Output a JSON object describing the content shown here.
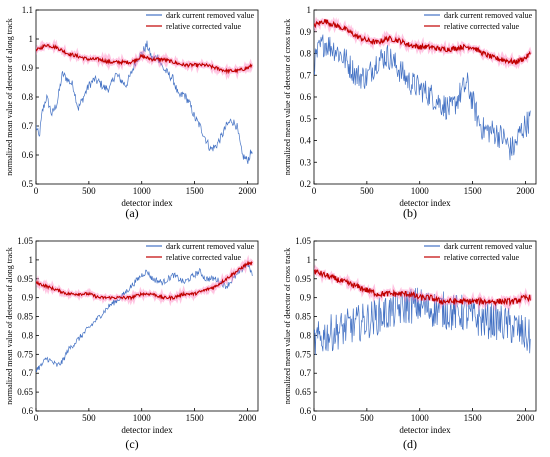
{
  "colors": {
    "dark": "#4472c4",
    "corrected": "#c00000",
    "corrected_band": "#ff7fbf",
    "axis": "#000000"
  },
  "panel_labels": [
    "(a)",
    "(b)",
    "(c)",
    "(d)"
  ],
  "chart_data": [
    {
      "type": "line",
      "panel": "(a)",
      "xlabel": "detector index",
      "ylabel": "normalized mean value of detector of along track",
      "xlim": [
        0,
        2100
      ],
      "ylim": [
        0.5,
        1.1
      ],
      "xticks": [
        "0",
        "500",
        "1000",
        "1500",
        "2000"
      ],
      "xtick_values": [
        0,
        500,
        1000,
        1500,
        2000
      ],
      "yticks": [
        "0.5",
        "0.6",
        "0.7",
        "0.8",
        "0.9",
        "1",
        "1.1"
      ],
      "ytick_values": [
        0.5,
        0.6,
        0.7,
        0.8,
        0.9,
        1.0,
        1.1
      ],
      "legend_position": "top-right",
      "noise": [
        0.015,
        0.006
      ],
      "series": [
        {
          "name": "dark current removed value",
          "color": "#4472c4",
          "x": [
            0,
            30,
            60,
            100,
            150,
            200,
            250,
            300,
            350,
            400,
            450,
            500,
            550,
            600,
            650,
            700,
            750,
            800,
            850,
            900,
            950,
            1000,
            1050,
            1100,
            1150,
            1200,
            1250,
            1300,
            1350,
            1400,
            1450,
            1500,
            1550,
            1600,
            1650,
            1700,
            1750,
            1800,
            1850,
            1900,
            1950,
            2000,
            2048
          ],
          "y": [
            0.7,
            0.66,
            0.75,
            0.8,
            0.74,
            0.78,
            0.88,
            0.86,
            0.84,
            0.76,
            0.8,
            0.84,
            0.86,
            0.85,
            0.83,
            0.83,
            0.88,
            0.86,
            0.84,
            0.88,
            0.93,
            0.95,
            0.98,
            0.93,
            0.94,
            0.9,
            0.88,
            0.86,
            0.8,
            0.81,
            0.78,
            0.73,
            0.7,
            0.66,
            0.62,
            0.63,
            0.66,
            0.7,
            0.72,
            0.7,
            0.6,
            0.58,
            0.62
          ]
        },
        {
          "name": "relative corrected value",
          "color": "#c00000",
          "x": [
            0,
            100,
            200,
            300,
            400,
            500,
            600,
            700,
            800,
            900,
            1000,
            1100,
            1200,
            1300,
            1400,
            1500,
            1600,
            1700,
            1800,
            1900,
            2000,
            2048
          ],
          "y": [
            0.96,
            0.98,
            0.97,
            0.95,
            0.94,
            0.93,
            0.93,
            0.92,
            0.92,
            0.92,
            0.94,
            0.93,
            0.93,
            0.92,
            0.91,
            0.91,
            0.91,
            0.9,
            0.89,
            0.89,
            0.9,
            0.91
          ]
        }
      ]
    },
    {
      "type": "line",
      "panel": "(b)",
      "xlabel": "detector index",
      "ylabel": "normalized mean value of detector of cross track",
      "xlim": [
        0,
        2100
      ],
      "ylim": [
        0.2,
        1.0
      ],
      "xticks": [
        "0",
        "500",
        "1000",
        "1500",
        "2000"
      ],
      "xtick_values": [
        0,
        500,
        1000,
        1500,
        2000
      ],
      "yticks": [
        "0.2",
        "0.3",
        "0.4",
        "0.5",
        "0.6",
        "0.7",
        "0.8",
        "0.9",
        "1"
      ],
      "ytick_values": [
        0.2,
        0.3,
        0.4,
        0.5,
        0.6,
        0.7,
        0.8,
        0.9,
        1.0
      ],
      "legend_position": "top-right",
      "noise": [
        0.06,
        0.012
      ],
      "series": [
        {
          "name": "dark current removed value",
          "color": "#4472c4",
          "x": [
            0,
            50,
            100,
            200,
            300,
            400,
            500,
            600,
            700,
            800,
            900,
            1000,
            1100,
            1200,
            1300,
            1400,
            1450,
            1500,
            1550,
            1600,
            1700,
            1800,
            1850,
            1900,
            1950,
            2000,
            2048
          ],
          "y": [
            0.75,
            0.82,
            0.85,
            0.82,
            0.77,
            0.7,
            0.69,
            0.77,
            0.79,
            0.73,
            0.67,
            0.64,
            0.61,
            0.57,
            0.54,
            0.63,
            0.66,
            0.58,
            0.5,
            0.45,
            0.44,
            0.41,
            0.36,
            0.37,
            0.44,
            0.47,
            0.5
          ]
        },
        {
          "name": "relative corrected value",
          "color": "#c00000",
          "x": [
            0,
            100,
            200,
            300,
            400,
            500,
            600,
            700,
            800,
            900,
            1000,
            1100,
            1200,
            1300,
            1400,
            1500,
            1600,
            1700,
            1800,
            1900,
            2000,
            2048
          ],
          "y": [
            0.93,
            0.95,
            0.93,
            0.91,
            0.88,
            0.86,
            0.85,
            0.87,
            0.86,
            0.84,
            0.83,
            0.83,
            0.82,
            0.82,
            0.83,
            0.83,
            0.8,
            0.78,
            0.77,
            0.76,
            0.78,
            0.8
          ]
        }
      ]
    },
    {
      "type": "line",
      "panel": "(c)",
      "xlabel": "detector index",
      "ylabel": "normalized mean value of detector of along track",
      "xlim": [
        0,
        2100
      ],
      "ylim": [
        0.6,
        1.05
      ],
      "xticks": [
        "0",
        "500",
        "1000",
        "1500",
        "2000"
      ],
      "xtick_values": [
        0,
        500,
        1000,
        1500,
        2000
      ],
      "yticks": [
        "0.6",
        "0.65",
        "0.7",
        "0.75",
        "0.8",
        "0.85",
        "0.9",
        "0.95",
        "1",
        "1.05"
      ],
      "ytick_values": [
        0.6,
        0.65,
        0.7,
        0.75,
        0.8,
        0.85,
        0.9,
        0.95,
        1.0,
        1.05
      ],
      "legend_position": "top-right",
      "noise": [
        0.008,
        0.004
      ],
      "series": [
        {
          "name": "dark current removed value",
          "color": "#4472c4",
          "x": [
            0,
            50,
            100,
            200,
            250,
            300,
            400,
            500,
            600,
            700,
            800,
            900,
            1000,
            1050,
            1100,
            1200,
            1300,
            1400,
            1500,
            1550,
            1600,
            1700,
            1800,
            1900,
            2000,
            2048
          ],
          "y": [
            0.71,
            0.72,
            0.74,
            0.72,
            0.73,
            0.76,
            0.79,
            0.82,
            0.85,
            0.88,
            0.9,
            0.93,
            0.96,
            0.97,
            0.95,
            0.94,
            0.96,
            0.94,
            0.96,
            0.97,
            0.95,
            0.95,
            0.93,
            0.96,
            0.99,
            0.96
          ]
        },
        {
          "name": "relative corrected value",
          "color": "#c00000",
          "x": [
            0,
            100,
            200,
            300,
            400,
            500,
            600,
            700,
            800,
            900,
            1000,
            1100,
            1200,
            1300,
            1400,
            1500,
            1600,
            1700,
            1800,
            1900,
            2000,
            2048
          ],
          "y": [
            0.94,
            0.93,
            0.92,
            0.91,
            0.91,
            0.91,
            0.9,
            0.9,
            0.9,
            0.9,
            0.91,
            0.91,
            0.9,
            0.9,
            0.91,
            0.91,
            0.92,
            0.93,
            0.95,
            0.97,
            0.99,
            0.99
          ]
        }
      ]
    },
    {
      "type": "line",
      "panel": "(d)",
      "xlabel": "detector index",
      "ylabel": "normalized mean value of detector of cross track",
      "xlim": [
        0,
        2100
      ],
      "ylim": [
        0.6,
        1.05
      ],
      "xticks": [
        "0",
        "500",
        "1000",
        "1500",
        "2000"
      ],
      "xtick_values": [
        0,
        500,
        1000,
        1500,
        2000
      ],
      "yticks": [
        "0.6",
        "0.65",
        "0.7",
        "0.75",
        "0.8",
        "0.85",
        "0.9",
        "0.95",
        "1",
        "1.05"
      ],
      "ytick_values": [
        0.6,
        0.65,
        0.7,
        0.75,
        0.8,
        0.85,
        0.9,
        0.95,
        1.0,
        1.05
      ],
      "legend_position": "top-right",
      "noise": [
        0.05,
        0.008
      ],
      "series": [
        {
          "name": "dark current removed value",
          "color": "#4472c4",
          "x": [
            0,
            100,
            200,
            300,
            400,
            500,
            600,
            700,
            800,
            900,
            1000,
            1100,
            1200,
            1300,
            1400,
            1500,
            1600,
            1700,
            1800,
            1900,
            2000,
            2048
          ],
          "y": [
            0.78,
            0.8,
            0.81,
            0.82,
            0.83,
            0.84,
            0.85,
            0.86,
            0.87,
            0.88,
            0.88,
            0.87,
            0.87,
            0.86,
            0.86,
            0.85,
            0.84,
            0.84,
            0.83,
            0.82,
            0.8,
            0.79
          ]
        },
        {
          "name": "relative corrected value",
          "color": "#c00000",
          "x": [
            0,
            100,
            200,
            300,
            400,
            500,
            600,
            700,
            800,
            900,
            1000,
            1100,
            1200,
            1300,
            1400,
            1500,
            1600,
            1700,
            1800,
            1900,
            2000,
            2048
          ],
          "y": [
            0.97,
            0.96,
            0.95,
            0.94,
            0.93,
            0.92,
            0.91,
            0.91,
            0.91,
            0.91,
            0.9,
            0.9,
            0.89,
            0.89,
            0.89,
            0.89,
            0.89,
            0.89,
            0.89,
            0.89,
            0.9,
            0.9
          ]
        }
      ]
    }
  ]
}
